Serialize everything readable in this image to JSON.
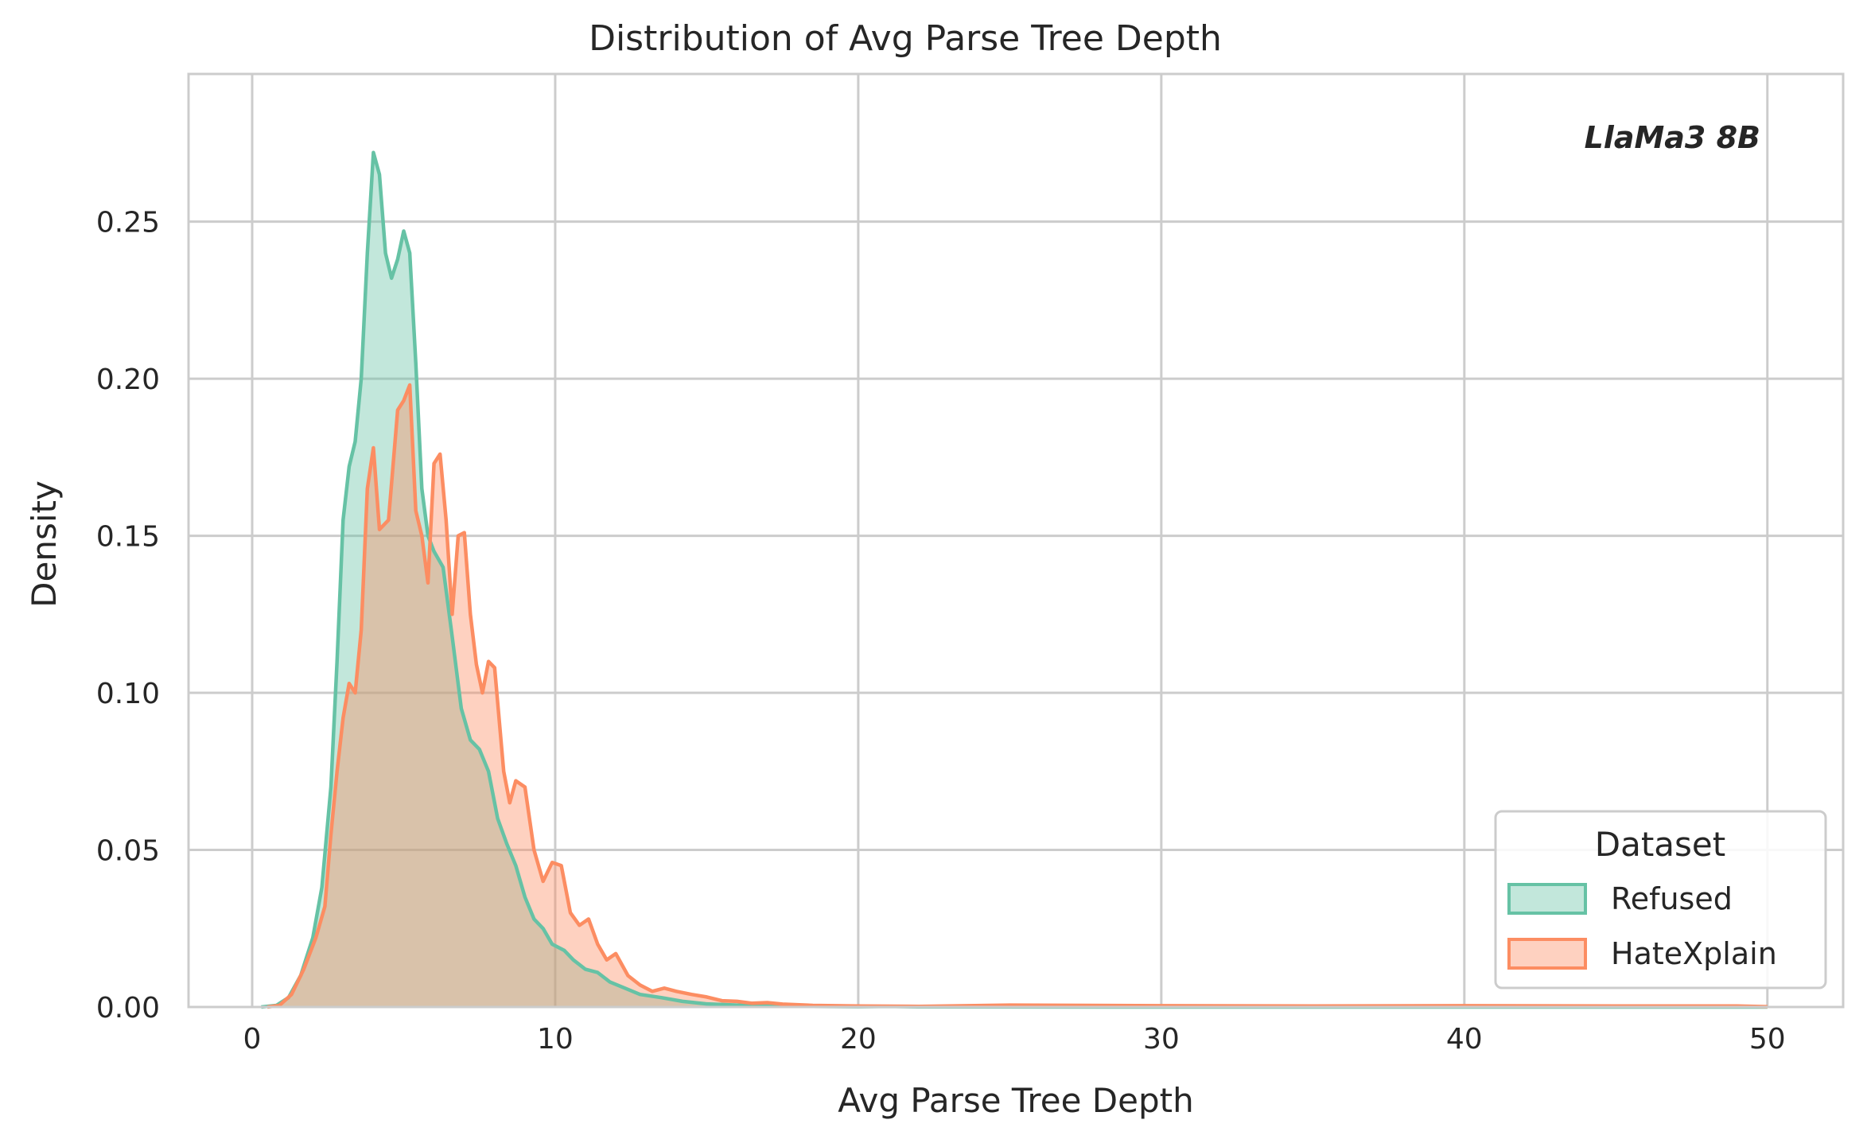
{
  "chart_data": {
    "type": "area",
    "title": "Distribution of Avg Parse Tree Depth",
    "xlabel": "Avg Parse Tree Depth",
    "ylabel": "Density",
    "xlim": [
      -2.1,
      52.5
    ],
    "ylim": [
      0,
      0.297
    ],
    "xticks": [
      0,
      10,
      20,
      30,
      40,
      50
    ],
    "xtick_labels": [
      "0",
      "10",
      "20",
      "30",
      "40",
      "50"
    ],
    "yticks": [
      0,
      0.05,
      0.1,
      0.15,
      0.2,
      0.25
    ],
    "ytick_labels": [
      "0.00",
      "0.05",
      "0.10",
      "0.15",
      "0.20",
      "0.25"
    ],
    "grid": true,
    "annotation": "LlaMa3 8B",
    "legend": {
      "title": "Dataset",
      "placement": "bottom-right"
    },
    "series": [
      {
        "name": "Refused",
        "color": "#66c2a5",
        "fill_opacity": 0.4,
        "points": [
          [
            0.3,
            0
          ],
          [
            0.8,
            0.0005
          ],
          [
            1.2,
            0.003
          ],
          [
            1.6,
            0.01
          ],
          [
            2.0,
            0.022
          ],
          [
            2.3,
            0.038
          ],
          [
            2.6,
            0.07
          ],
          [
            2.8,
            0.11
          ],
          [
            3.0,
            0.155
          ],
          [
            3.2,
            0.172
          ],
          [
            3.4,
            0.18
          ],
          [
            3.6,
            0.2
          ],
          [
            3.8,
            0.24
          ],
          [
            4.0,
            0.272
          ],
          [
            4.2,
            0.265
          ],
          [
            4.4,
            0.24
          ],
          [
            4.6,
            0.232
          ],
          [
            4.8,
            0.238
          ],
          [
            5.0,
            0.247
          ],
          [
            5.2,
            0.24
          ],
          [
            5.4,
            0.205
          ],
          [
            5.6,
            0.165
          ],
          [
            5.8,
            0.15
          ],
          [
            6.0,
            0.145
          ],
          [
            6.3,
            0.14
          ],
          [
            6.6,
            0.118
          ],
          [
            6.9,
            0.095
          ],
          [
            7.2,
            0.085
          ],
          [
            7.5,
            0.082
          ],
          [
            7.8,
            0.075
          ],
          [
            8.1,
            0.06
          ],
          [
            8.4,
            0.052
          ],
          [
            8.7,
            0.045
          ],
          [
            9.0,
            0.035
          ],
          [
            9.3,
            0.028
          ],
          [
            9.6,
            0.025
          ],
          [
            9.9,
            0.02
          ],
          [
            10.3,
            0.018
          ],
          [
            10.6,
            0.015
          ],
          [
            11.0,
            0.012
          ],
          [
            11.4,
            0.011
          ],
          [
            11.8,
            0.008
          ],
          [
            12.3,
            0.006
          ],
          [
            12.8,
            0.004
          ],
          [
            13.5,
            0.003
          ],
          [
            14.2,
            0.0018
          ],
          [
            15.0,
            0.001
          ],
          [
            16.0,
            0.0006
          ],
          [
            17.0,
            0.0004
          ],
          [
            18.5,
            0.0002
          ],
          [
            20.0,
            0.0001
          ],
          [
            21.0,
            0.0002
          ],
          [
            22.0,
            5e-05
          ],
          [
            25.0,
            2e-05
          ],
          [
            30.0,
            1e-05
          ],
          [
            40.0,
            5e-06
          ],
          [
            50.0,
            0
          ]
        ]
      },
      {
        "name": "HateXplain",
        "color": "#fc8d62",
        "fill_opacity": 0.4,
        "points": [
          [
            0.5,
            0
          ],
          [
            0.9,
            0.0005
          ],
          [
            1.3,
            0.004
          ],
          [
            1.7,
            0.012
          ],
          [
            2.1,
            0.022
          ],
          [
            2.4,
            0.032
          ],
          [
            2.6,
            0.055
          ],
          [
            2.8,
            0.075
          ],
          [
            3.0,
            0.092
          ],
          [
            3.2,
            0.103
          ],
          [
            3.4,
            0.1
          ],
          [
            3.6,
            0.12
          ],
          [
            3.8,
            0.165
          ],
          [
            4.0,
            0.178
          ],
          [
            4.2,
            0.152
          ],
          [
            4.5,
            0.155
          ],
          [
            4.8,
            0.19
          ],
          [
            5.0,
            0.193
          ],
          [
            5.2,
            0.198
          ],
          [
            5.4,
            0.158
          ],
          [
            5.6,
            0.15
          ],
          [
            5.8,
            0.135
          ],
          [
            6.0,
            0.173
          ],
          [
            6.2,
            0.176
          ],
          [
            6.4,
            0.155
          ],
          [
            6.6,
            0.125
          ],
          [
            6.8,
            0.15
          ],
          [
            7.0,
            0.151
          ],
          [
            7.2,
            0.125
          ],
          [
            7.4,
            0.109
          ],
          [
            7.6,
            0.1
          ],
          [
            7.8,
            0.11
          ],
          [
            8.0,
            0.108
          ],
          [
            8.3,
            0.075
          ],
          [
            8.5,
            0.065
          ],
          [
            8.7,
            0.072
          ],
          [
            9.0,
            0.07
          ],
          [
            9.3,
            0.05
          ],
          [
            9.6,
            0.04
          ],
          [
            9.9,
            0.046
          ],
          [
            10.2,
            0.045
          ],
          [
            10.5,
            0.03
          ],
          [
            10.8,
            0.026
          ],
          [
            11.1,
            0.028
          ],
          [
            11.4,
            0.02
          ],
          [
            11.7,
            0.015
          ],
          [
            12.0,
            0.017
          ],
          [
            12.4,
            0.01
          ],
          [
            12.8,
            0.007
          ],
          [
            13.2,
            0.005
          ],
          [
            13.6,
            0.006
          ],
          [
            14.0,
            0.005
          ],
          [
            14.5,
            0.004
          ],
          [
            15.0,
            0.0032
          ],
          [
            15.5,
            0.002
          ],
          [
            16.0,
            0.0018
          ],
          [
            16.5,
            0.0012
          ],
          [
            17.0,
            0.0014
          ],
          [
            17.5,
            0.0009
          ],
          [
            18.5,
            0.0005
          ],
          [
            20.0,
            0.0003
          ],
          [
            22.0,
            0.0002
          ],
          [
            25.0,
            0.0006
          ],
          [
            30.0,
            0.0004
          ],
          [
            35.0,
            0.0003
          ],
          [
            40.0,
            0.0004
          ],
          [
            45.0,
            0.0003
          ],
          [
            49.0,
            0.0003
          ],
          [
            50.0,
            0.0001
          ]
        ]
      }
    ]
  }
}
